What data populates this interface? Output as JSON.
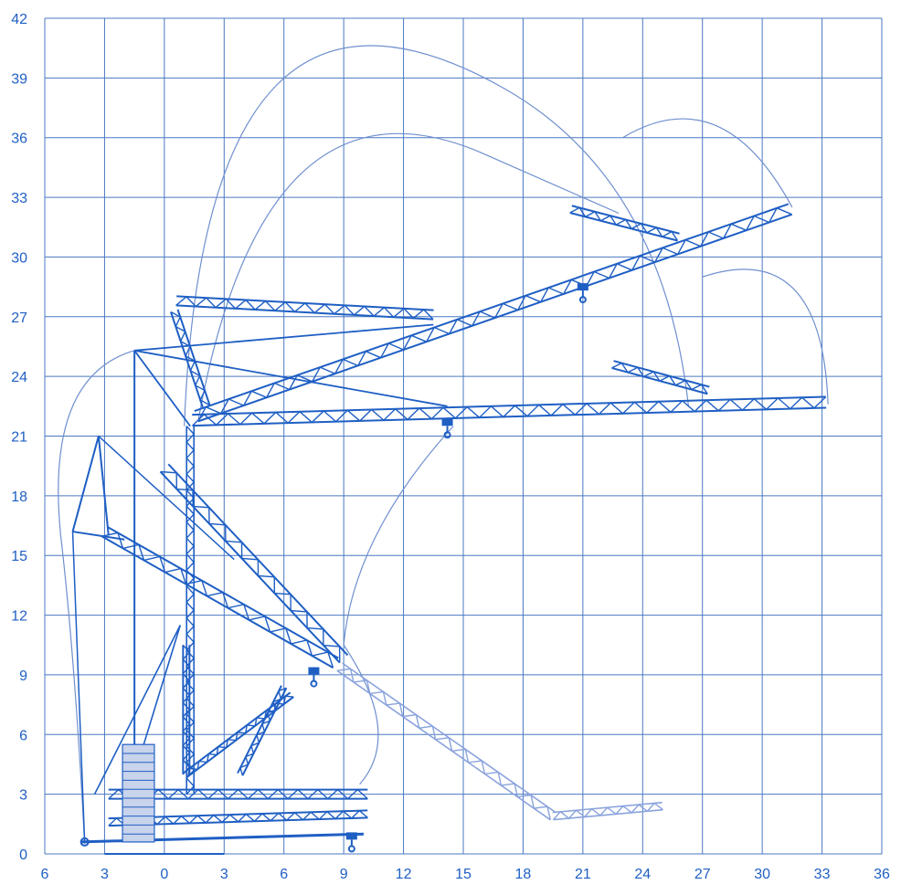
{
  "chart_data": {
    "type": "diagram",
    "title": "",
    "xlabel": "",
    "ylabel": "",
    "x_tick_labels": [
      "6",
      "3",
      "0",
      "3",
      "6",
      "9",
      "12",
      "15",
      "18",
      "21",
      "24",
      "27",
      "30",
      "33",
      "36"
    ],
    "y_tick_labels": [
      "42",
      "39",
      "36",
      "33",
      "30",
      "27",
      "24",
      "21",
      "18",
      "15",
      "12",
      "9",
      "6",
      "3",
      "0"
    ],
    "xlim": [
      -6,
      36
    ],
    "ylim": [
      0,
      42
    ],
    "grid": true,
    "annotations": [
      {
        "name": "max-radius-envelope",
        "description": "working range envelope curve"
      },
      {
        "name": "counterweight-stack"
      },
      {
        "name": "folded-transport-boom"
      }
    ]
  },
  "colors": {
    "grid": "#4a78c2",
    "structure": "#1f5fc4",
    "envelope": "#6f8fcf",
    "ghost": "#8aa3dd",
    "label": "#1f5fc4",
    "counterweight": "#c8d3ec"
  }
}
